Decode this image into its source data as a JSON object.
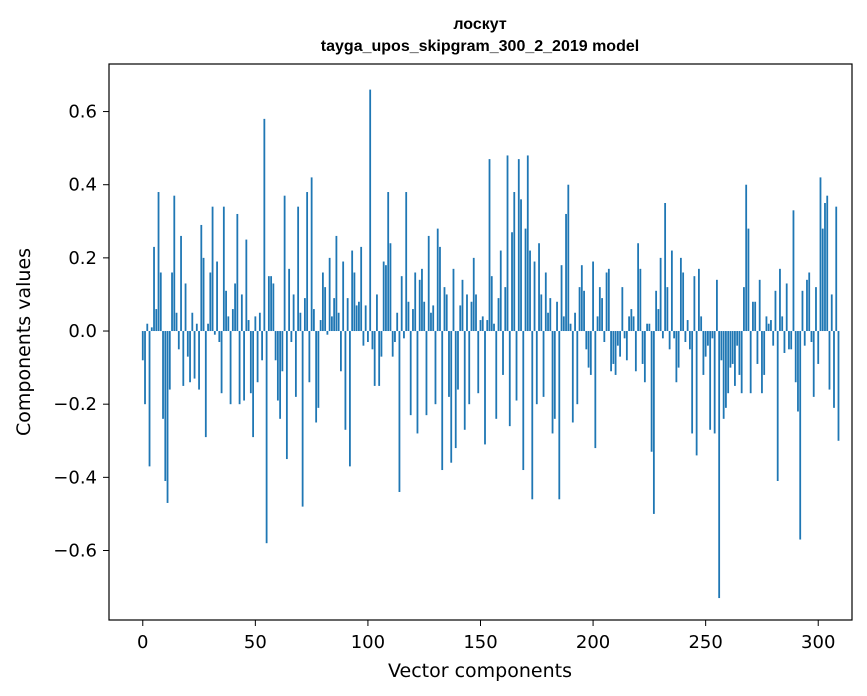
{
  "chart_data": {
    "type": "bar",
    "title": "лоскут",
    "subtitle": "tayga_upos_skipgram_300_2_2019 model",
    "xlabel": "Vector components",
    "ylabel": "Components values",
    "xlim": [
      -15,
      315
    ],
    "ylim": [
      -0.79,
      0.73
    ],
    "xticks": [
      0,
      50,
      100,
      150,
      200,
      250,
      300
    ],
    "yticks": [
      -0.6,
      -0.4,
      -0.2,
      0.0,
      0.2,
      0.4,
      0.6
    ],
    "xtick_labels": [
      "0",
      "50",
      "100",
      "150",
      "200",
      "250",
      "300"
    ],
    "ytick_labels": [
      "−0.6",
      "−0.4",
      "−0.2",
      "0.0",
      "0.2",
      "0.4",
      "0.6"
    ],
    "color": "#1f77b4",
    "values": [
      -0.08,
      -0.2,
      0.02,
      -0.37,
      0.01,
      0.23,
      0.06,
      0.38,
      0.16,
      -0.24,
      -0.41,
      -0.47,
      -0.16,
      0.16,
      0.37,
      0.05,
      -0.05,
      0.26,
      -0.15,
      0.13,
      -0.07,
      -0.14,
      0.05,
      -0.13,
      0.02,
      -0.16,
      0.29,
      0.2,
      -0.29,
      0.02,
      0.16,
      0.34,
      -0.01,
      0.19,
      -0.03,
      -0.17,
      0.34,
      0.11,
      0.04,
      -0.2,
      0.06,
      0.13,
      0.32,
      -0.2,
      0.1,
      -0.19,
      0.25,
      0.03,
      -0.17,
      -0.29,
      0.04,
      -0.14,
      0.05,
      -0.08,
      0.58,
      -0.58,
      0.15,
      0.15,
      0.13,
      -0.08,
      -0.19,
      -0.24,
      -0.11,
      0.37,
      -0.35,
      0.17,
      -0.03,
      0.1,
      -0.18,
      0.34,
      0.05,
      -0.48,
      0.09,
      0.38,
      -0.14,
      0.42,
      0.06,
      -0.25,
      -0.21,
      0.03,
      0.16,
      0.12,
      -0.01,
      0.2,
      0.04,
      0.09,
      0.26,
      0.05,
      -0.11,
      0.19,
      -0.27,
      0.09,
      -0.37,
      0.22,
      0.16,
      0.07,
      0.08,
      0.23,
      -0.04,
      0.07,
      -0.03,
      0.66,
      -0.05,
      -0.15,
      0.1,
      -0.15,
      -0.07,
      0.19,
      0.18,
      0.38,
      0.24,
      -0.07,
      -0.03,
      0.05,
      -0.44,
      0.15,
      -0.02,
      0.38,
      0.08,
      -0.23,
      0.06,
      0.16,
      -0.28,
      0.14,
      0.17,
      0.08,
      -0.23,
      0.26,
      0.05,
      0.07,
      -0.2,
      0.28,
      0.23,
      -0.38,
      0.12,
      0.1,
      -0.18,
      -0.36,
      0.17,
      -0.32,
      -0.16,
      0.07,
      0.14,
      -0.27,
      0.1,
      -0.2,
      0.08,
      0.2,
      0.1,
      -0.17,
      0.03,
      0.04,
      -0.31,
      0.03,
      0.47,
      0.15,
      0.02,
      -0.24,
      0.09,
      0.22,
      -0.12,
      0.12,
      0.48,
      -0.26,
      0.27,
      0.38,
      -0.19,
      0.47,
      0.36,
      -0.38,
      0.28,
      0.48,
      0.22,
      -0.46,
      0.19,
      -0.2,
      0.24,
      0.1,
      -0.18,
      0.16,
      0.05,
      0.09,
      -0.28,
      -0.24,
      0.08,
      -0.46,
      0.18,
      0.04,
      0.32,
      0.4,
      0.02,
      -0.25,
      0.05,
      -0.2,
      0.12,
      0.18,
      0.11,
      -0.05,
      -0.1,
      -0.12,
      0.19,
      -0.32,
      0.04,
      0.12,
      0.09,
      -0.03,
      0.16,
      0.17,
      -0.11,
      -0.09,
      -0.12,
      -0.04,
      -0.07,
      0.12,
      -0.02,
      -0.08,
      0.04,
      0.06,
      0.04,
      -0.11,
      0.24,
      0.17,
      -0.09,
      -0.14,
      0.02,
      0.02,
      -0.33,
      -0.5,
      0.11,
      0.06,
      0.2,
      -0.02,
      0.35,
      0.12,
      -0.05,
      0.22,
      -0.02,
      -0.14,
      -0.1,
      0.2,
      0.16,
      -0.03,
      0.03,
      -0.05,
      -0.28,
      0.15,
      -0.34,
      0.17,
      0.04,
      -0.12,
      -0.07,
      -0.04,
      -0.27,
      -0.02,
      -0.28,
      0.14,
      -0.73,
      -0.08,
      -0.24,
      -0.21,
      -0.17,
      -0.1,
      -0.09,
      -0.15,
      -0.04,
      -0.12,
      -0.17,
      0.12,
      0.4,
      0.28,
      -0.17,
      0.08,
      0.08,
      -0.09,
      0.14,
      -0.17,
      -0.12,
      0.04,
      0.02,
      0.03,
      -0.04,
      0.11,
      -0.41,
      0.17,
      0.04,
      -0.06,
      0.13,
      -0.05,
      -0.05,
      0.33,
      -0.14,
      -0.22,
      -0.57,
      0.11,
      -0.04,
      0.14,
      0.16,
      -0.03,
      -0.18,
      0.12,
      -0.09,
      0.42,
      0.28,
      0.35,
      0.37,
      -0.16,
      0.1,
      -0.21,
      0.34,
      -0.3
    ]
  }
}
